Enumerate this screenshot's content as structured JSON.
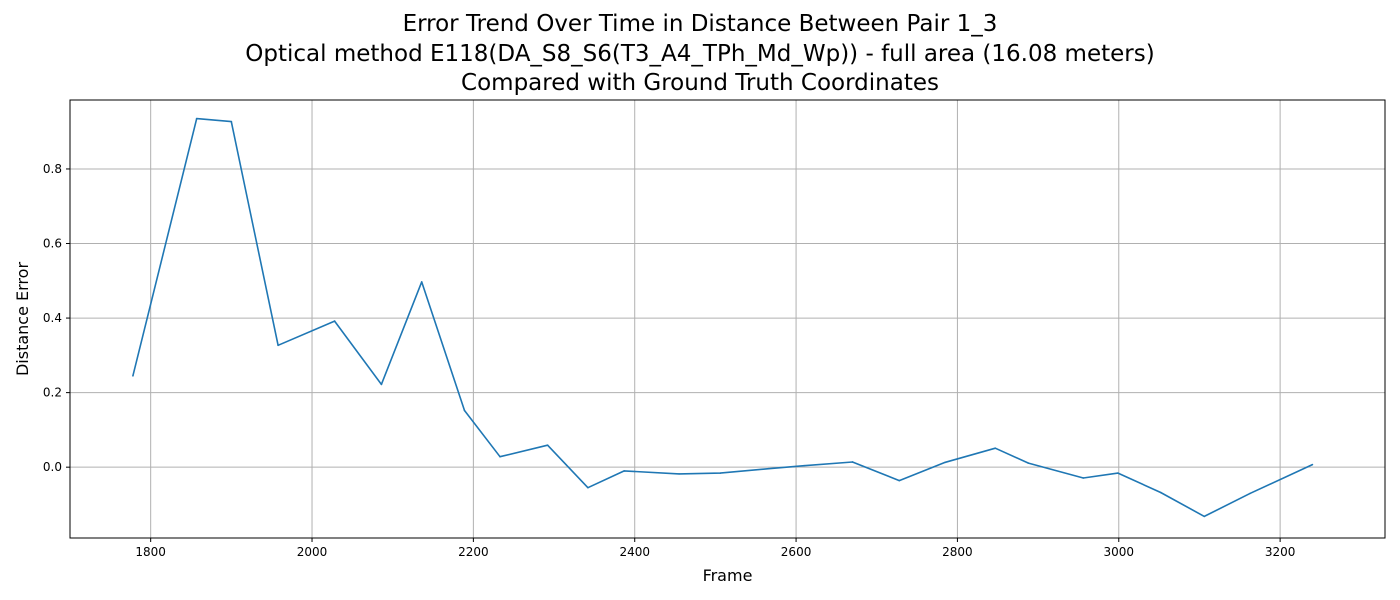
{
  "chart_data": {
    "type": "line",
    "title_lines": [
      "Error Trend Over Time in Distance Between Pair 1_3",
      "Optical method E118(DA_S8_S6(T3_A4_TPh_Md_Wp)) - full area (16.08 meters)",
      "Compared with Ground Truth Coordinates"
    ],
    "xlabel": "Frame",
    "ylabel": "Distance Error",
    "xlim": [
      1700,
      3330
    ],
    "ylim": [
      -0.19,
      0.985
    ],
    "xticks": [
      1800,
      2000,
      2200,
      2400,
      2600,
      2800,
      3000,
      3200
    ],
    "yticks": [
      0.0,
      0.2,
      0.4,
      0.6,
      0.8
    ],
    "ytick_labels": [
      "0.0",
      "0.2",
      "0.4",
      "0.6",
      "0.8"
    ],
    "grid": true,
    "line_color": "#1f77b4",
    "series": [
      {
        "x": [
          1778,
          1857,
          1900,
          1958,
          2028,
          2086,
          2136,
          2189,
          2233,
          2292,
          2342,
          2387,
          2455,
          2506,
          2566,
          2610,
          2670,
          2728,
          2785,
          2847,
          2888,
          2956,
          2999,
          3052,
          3106,
          3163,
          3240
        ],
        "y": [
          0.245,
          0.935,
          0.927,
          0.327,
          0.392,
          0.222,
          0.497,
          0.152,
          0.028,
          0.059,
          -0.055,
          -0.01,
          -0.018,
          -0.016,
          -0.004,
          0.004,
          0.014,
          -0.036,
          0.013,
          0.051,
          0.011,
          -0.029,
          -0.016,
          -0.068,
          -0.132,
          -0.07,
          0.007
        ]
      }
    ]
  }
}
